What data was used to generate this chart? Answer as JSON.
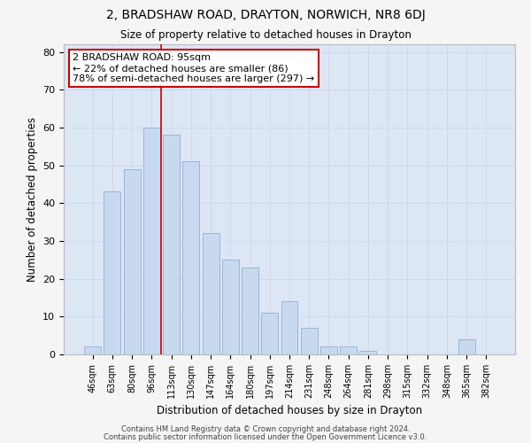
{
  "title": "2, BRADSHAW ROAD, DRAYTON, NORWICH, NR8 6DJ",
  "subtitle": "Size of property relative to detached houses in Drayton",
  "xlabel": "Distribution of detached houses by size in Drayton",
  "ylabel": "Number of detached properties",
  "bar_color": "#c8d9ef",
  "bar_edge_color": "#9ab5d9",
  "categories": [
    "46sqm",
    "63sqm",
    "80sqm",
    "96sqm",
    "113sqm",
    "130sqm",
    "147sqm",
    "164sqm",
    "180sqm",
    "197sqm",
    "214sqm",
    "231sqm",
    "248sqm",
    "264sqm",
    "281sqm",
    "298sqm",
    "315sqm",
    "332sqm",
    "348sqm",
    "365sqm",
    "382sqm"
  ],
  "values": [
    2,
    43,
    49,
    60,
    58,
    51,
    32,
    25,
    23,
    11,
    14,
    7,
    2,
    2,
    1,
    0,
    0,
    0,
    0,
    4,
    0
  ],
  "ylim": [
    0,
    82
  ],
  "yticks": [
    0,
    10,
    20,
    30,
    40,
    50,
    60,
    70,
    80
  ],
  "property_line_x": 3.5,
  "annotation_text": "2 BRADSHAW ROAD: 95sqm\n← 22% of detached houses are smaller (86)\n78% of semi-detached houses are larger (297) →",
  "annotation_box_color": "#ffffff",
  "annotation_border_color": "#cc0000",
  "property_line_color": "#cc0000",
  "footer_line1": "Contains HM Land Registry data © Crown copyright and database right 2024.",
  "footer_line2": "Contains public sector information licensed under the Open Government Licence v3.0.",
  "grid_color": "#cdd8eb",
  "background_color": "#dce6f5",
  "fig_background": "#f5f5f5"
}
